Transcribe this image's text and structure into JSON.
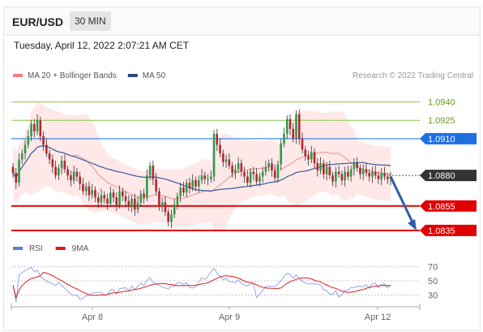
{
  "header": {
    "pair": "EUR/USD",
    "timeframe": "30 MIN"
  },
  "timestamp": "Tuesday, April 12, 2022 2:07:21 AM CET",
  "legend": [
    {
      "label": "MA 20 + Bollinger Bands",
      "color": "#f08080"
    },
    {
      "label": "MA 50",
      "color": "#2c4a7c"
    }
  ],
  "credit": "Research © 2022 Trading Central",
  "rsi_legend": [
    {
      "label": "RSI",
      "color": "#5b7fd6"
    },
    {
      "label": "9MA",
      "color": "#e31a1c"
    }
  ],
  "chart_data": {
    "type": "candlestick",
    "y_range": [
      1.0825,
      1.0955
    ],
    "x_labels": [
      "Apr 8",
      "Apr 9",
      "Apr 12"
    ],
    "levels": [
      {
        "label": "1.0940",
        "value": 1.094,
        "kind": "target",
        "color": "#8bc34a"
      },
      {
        "label": "1.0925",
        "value": 1.0925,
        "kind": "target",
        "color": "#8bc34a"
      },
      {
        "label": "1.0910",
        "value": 1.091,
        "kind": "pivot",
        "color": "#1e6fe0"
      },
      {
        "label": "1.0880",
        "value": 1.088,
        "kind": "last",
        "color": "#333333"
      },
      {
        "label": "1.0855",
        "value": 1.0855,
        "kind": "support",
        "color": "#e00000"
      },
      {
        "label": "1.0835",
        "value": 1.0835,
        "kind": "support",
        "color": "#e00000"
      }
    ],
    "forecast": {
      "from": 1.0879,
      "to": 1.0835,
      "color": "#2f5fa8"
    },
    "closes": [
      1.0882,
      1.0874,
      1.0893,
      1.0898,
      1.0905,
      1.0912,
      1.0922,
      1.0916,
      1.0925,
      1.0912,
      1.0905,
      1.0898,
      1.0893,
      1.0887,
      1.088,
      1.0886,
      1.0892,
      1.0885,
      1.088,
      1.0876,
      1.0883,
      1.0879,
      1.0873,
      1.0867,
      1.0871,
      1.0864,
      1.0868,
      1.0862,
      1.0858,
      1.0864,
      1.0861,
      1.0857,
      1.0866,
      1.0862,
      1.0856,
      1.0867,
      1.0863,
      1.0859,
      1.0854,
      1.0861,
      1.0852,
      1.0858,
      1.0865,
      1.0862,
      1.088,
      1.0888,
      1.0877,
      1.0867,
      1.0855,
      1.0858,
      1.085,
      1.0842,
      1.0848,
      1.0856,
      1.0863,
      1.087,
      1.0866,
      1.0874,
      1.087,
      1.0876,
      1.0871,
      1.0876,
      1.088,
      1.0877,
      1.0877,
      1.0879,
      1.0914,
      1.0905,
      1.0898,
      1.0891,
      1.0893,
      1.0888,
      1.0882,
      1.0885,
      1.089,
      1.0883,
      1.0879,
      1.0874,
      1.0883,
      1.0881,
      1.0875,
      1.0879,
      1.0883,
      1.0887,
      1.089,
      1.0884,
      1.0878,
      1.0889,
      1.0906,
      1.0914,
      1.0926,
      1.0918,
      1.091,
      1.093,
      1.091,
      1.0901,
      1.0896,
      1.0893,
      1.0899,
      1.089,
      1.0884,
      1.089,
      1.0881,
      1.0887,
      1.088,
      1.0875,
      1.0883,
      1.0881,
      1.0876,
      1.0883,
      1.0879,
      1.0885,
      1.089,
      1.0886,
      1.0881,
      1.0885,
      1.0882,
      1.0879,
      1.0883,
      1.088,
      1.0877,
      1.0882,
      1.0879,
      1.0877,
      1.0879
    ],
    "rsi": {
      "levels": [
        70,
        50,
        30
      ],
      "range": [
        20,
        80
      ]
    }
  }
}
